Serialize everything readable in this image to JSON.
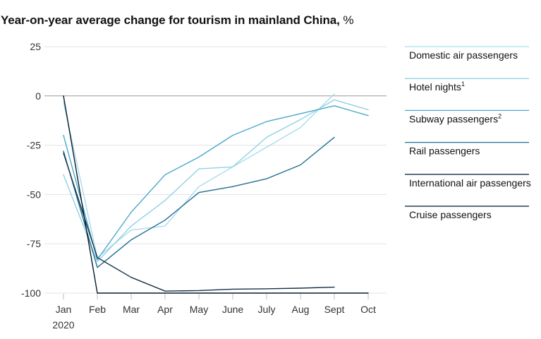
{
  "title": "Year-on-year average change for tourism in mainland China,",
  "title_unit": "%",
  "chart_data": {
    "type": "line",
    "title": "Year-on-year average change for tourism in mainland China, %",
    "categories": [
      "Jan",
      "Feb",
      "Mar",
      "Apr",
      "May",
      "June",
      "July",
      "Aug",
      "Sept",
      "Oct"
    ],
    "category_sublabel": "2020",
    "ylim": [
      -100,
      25
    ],
    "yticks": [
      25,
      0,
      -25,
      -50,
      -75,
      -100
    ],
    "ytick_labels": [
      "25",
      "0",
      "-25",
      "-50",
      "-75",
      "-100"
    ],
    "grid": true,
    "legend_position": "right",
    "series": [
      {
        "name": "Domestic air passengers",
        "sup": "",
        "color": "#a8dced",
        "values": [
          -3,
          -82,
          -68,
          -66,
          -46,
          -36,
          -26,
          -16,
          1,
          null
        ]
      },
      {
        "name": "Hotel nights",
        "sup": "1",
        "color": "#8fd2e6",
        "values": [
          -40,
          -84,
          -66,
          -53,
          -37,
          -36,
          -21,
          -12,
          -2,
          -7
        ]
      },
      {
        "name": "Subway passengers",
        "sup": "2",
        "color": "#4ba9cc",
        "values": [
          -20,
          -83,
          -59,
          -40,
          -31,
          -20,
          -13,
          -9,
          -5,
          -10
        ]
      },
      {
        "name": "Rail passengers",
        "sup": "",
        "color": "#1f6f93",
        "values": [
          -28,
          -87,
          -73,
          -63,
          -49,
          -46,
          -42,
          -35,
          -21,
          null
        ]
      },
      {
        "name": "International air passengers",
        "sup": "",
        "color": "#17324a",
        "values": [
          -29,
          -82,
          -92,
          -99,
          -98.7,
          -98,
          -97.8,
          -97.5,
          -97,
          null
        ]
      },
      {
        "name": "Cruise passengers",
        "sup": "",
        "color": "#051c2c",
        "values": [
          0,
          -100,
          -100,
          -100,
          -100,
          -100,
          -100,
          -100,
          -100,
          -100
        ]
      }
    ]
  }
}
